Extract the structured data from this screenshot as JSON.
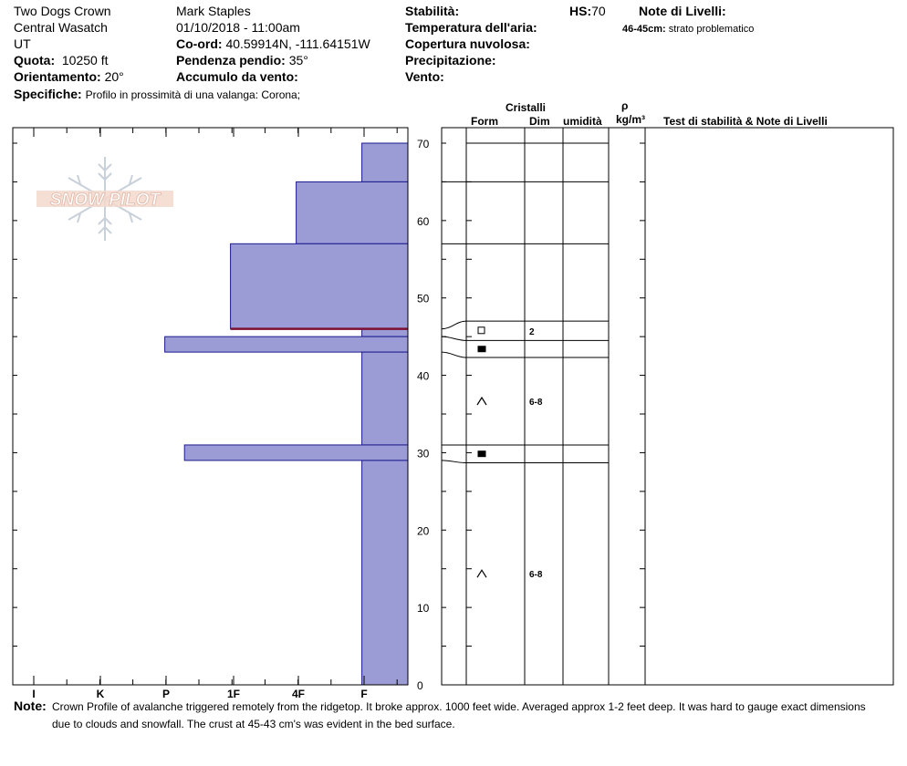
{
  "header": {
    "location": "Two Dogs Crown",
    "range": "Central Wasatch",
    "state": "UT",
    "elevation_label": "Quota:",
    "elevation_value": "10250 ft",
    "aspect_label": "Orientamento:",
    "aspect_value": "20°",
    "specifics_label": "Specifiche:",
    "specifics_value": "Profilo in prossimità di una valanga: Corona;",
    "observer": "Mark Staples",
    "datetime": "01/10/2018 - 11:00am",
    "coord_label": "Co-ord:",
    "coord_value": "40.59914N, -111.64151W",
    "slope_label": "Pendenza pendio:",
    "slope_value": "35°",
    "wind_loading_label": "Accumulo da vento:",
    "stability_label": "Stabilità:",
    "air_temp_label": "Temperatura dell'aria:",
    "cloud_label": "Copertura nuvolosa:",
    "precip_label": "Precipitazione:",
    "wind_label": "Vento:",
    "hs_label": "HS:",
    "hs_value": "70",
    "layer_notes_label": "Note di Livelli:",
    "layer_note_range": "46-45cm:",
    "layer_note_text": "strato problematico"
  },
  "columns": {
    "crystals": "Cristalli",
    "form": "Form",
    "dim": "Dim",
    "humidity": "umidità",
    "rho": "ρ",
    "density_unit": "kg/m³",
    "stability_notes": "Test di stabilità & Note di Livelli"
  },
  "logo_text": "SNOW PILOT",
  "note": {
    "label": "Note:",
    "line1": "Crown Profile of avalanche triggered remotely from the ridgetop.  It broke approx. 1000 feet wide. Averaged approx 1-2 feet deep. It was hard to gauge exact dimensions",
    "line2": "due to clouds and snowfall. The crust at 45-43 cm's was evident in the bed surface."
  },
  "chart_data": {
    "type": "bar",
    "title": "",
    "ylabel": "",
    "xlabel": "",
    "ylim": [
      0,
      70
    ],
    "y_ticks": [
      "0",
      "10",
      "20",
      "30",
      "40",
      "50",
      "60",
      "70"
    ],
    "x_ticks": [
      "I",
      "K",
      "P",
      "1F",
      "4F",
      "F"
    ],
    "hardness_scale": [
      "I",
      "K",
      "P",
      "1F",
      "4F",
      "F"
    ],
    "layers": [
      {
        "top": 70,
        "bottom": 65,
        "hardness": 0.7
      },
      {
        "top": 65,
        "bottom": 57,
        "hardness": 1.7
      },
      {
        "top": 57,
        "bottom": 46,
        "hardness": 2.7
      },
      {
        "top": 46,
        "bottom": 45,
        "hardness": 0.7,
        "problem": true
      },
      {
        "top": 45,
        "bottom": 43,
        "hardness": 3.7
      },
      {
        "top": 43,
        "bottom": 31,
        "hardness": 0.7
      },
      {
        "top": 31,
        "bottom": 29,
        "hardness": 3.4
      },
      {
        "top": 29,
        "bottom": 0,
        "hardness": 0.7
      }
    ],
    "grain_layers": [
      {
        "top": 70,
        "bottom": 65,
        "form": "",
        "size": ""
      },
      {
        "top": 65,
        "bottom": 57,
        "form": "",
        "size": ""
      },
      {
        "top": 57,
        "bottom": 47,
        "form": "",
        "size": ""
      },
      {
        "top": 47,
        "bottom": 44.5,
        "form": "square",
        "size": "2"
      },
      {
        "top": 44.5,
        "bottom": 42.3,
        "form": "filled-square",
        "size": ""
      },
      {
        "top": 42.3,
        "bottom": 31,
        "form": "caret",
        "size": "6-8"
      },
      {
        "top": 31,
        "bottom": 28.7,
        "form": "filled-square",
        "size": ""
      },
      {
        "top": 28.7,
        "bottom": 0,
        "form": "caret",
        "size": "6-8"
      }
    ],
    "colors": {
      "bar_fill": "#9b9bd6",
      "bar_stroke": "#1a1a8c",
      "problem_line": "#7b1030"
    }
  }
}
